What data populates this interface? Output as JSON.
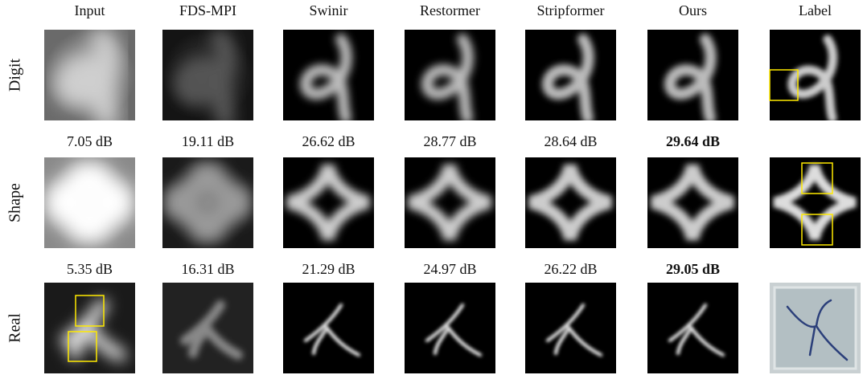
{
  "figure": {
    "columns": [
      "Input",
      "FDS-MPI",
      "Swinir",
      "Restormer",
      "Stripformer",
      "Ours",
      "Label"
    ],
    "rows": [
      {
        "label": "Digit",
        "psnr": [
          "7.05 dB",
          "19.11 dB",
          "26.62 dB",
          "28.77 dB",
          "28.64 dB",
          "29.64 dB"
        ]
      },
      {
        "label": "Shape",
        "psnr": [
          "5.35 dB",
          "16.31 dB",
          "21.29 dB",
          "24.97 dB",
          "26.22 dB",
          "29.05 dB"
        ]
      },
      {
        "label": "Real"
      }
    ]
  }
}
